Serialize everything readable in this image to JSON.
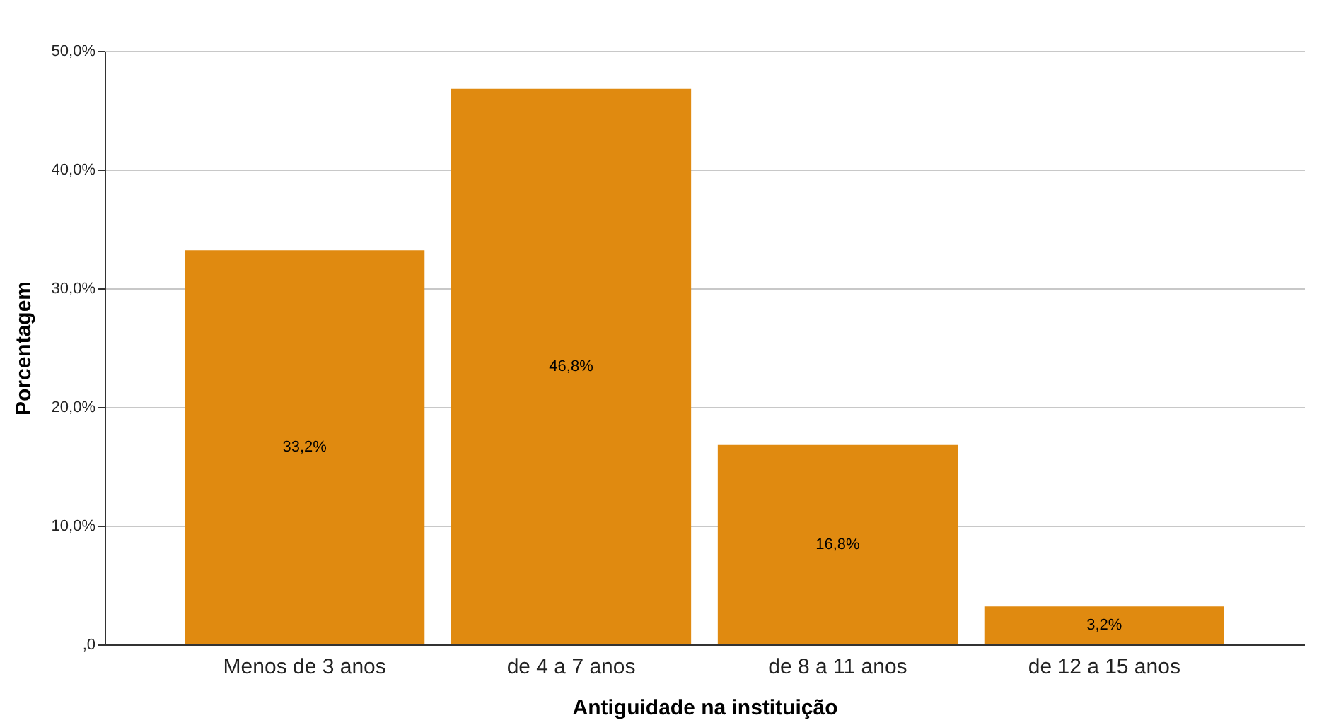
{
  "chart_data": {
    "type": "bar",
    "xlabel": "Antiguidade na instituição",
    "ylabel": "Porcentagem",
    "categories": [
      "Menos de 3 anos",
      "de 4 a 7 anos",
      "de 8 a 11 anos",
      "de 12 a 15 anos"
    ],
    "values": [
      33.2,
      46.8,
      16.8,
      3.2
    ],
    "value_labels": [
      "33,2%",
      "46,8%",
      "16,8%",
      "3,2%"
    ],
    "color": "#e08a10",
    "ylim": [
      0,
      50
    ],
    "yticks": [
      {
        "value": 0,
        "label": ",0"
      },
      {
        "value": 10,
        "label": "10,0%"
      },
      {
        "value": 20,
        "label": "20,0%"
      },
      {
        "value": 30,
        "label": "30,0%"
      },
      {
        "value": 40,
        "label": "40,0%"
      },
      {
        "value": 50,
        "label": "50,0%"
      }
    ],
    "grid": "y"
  }
}
